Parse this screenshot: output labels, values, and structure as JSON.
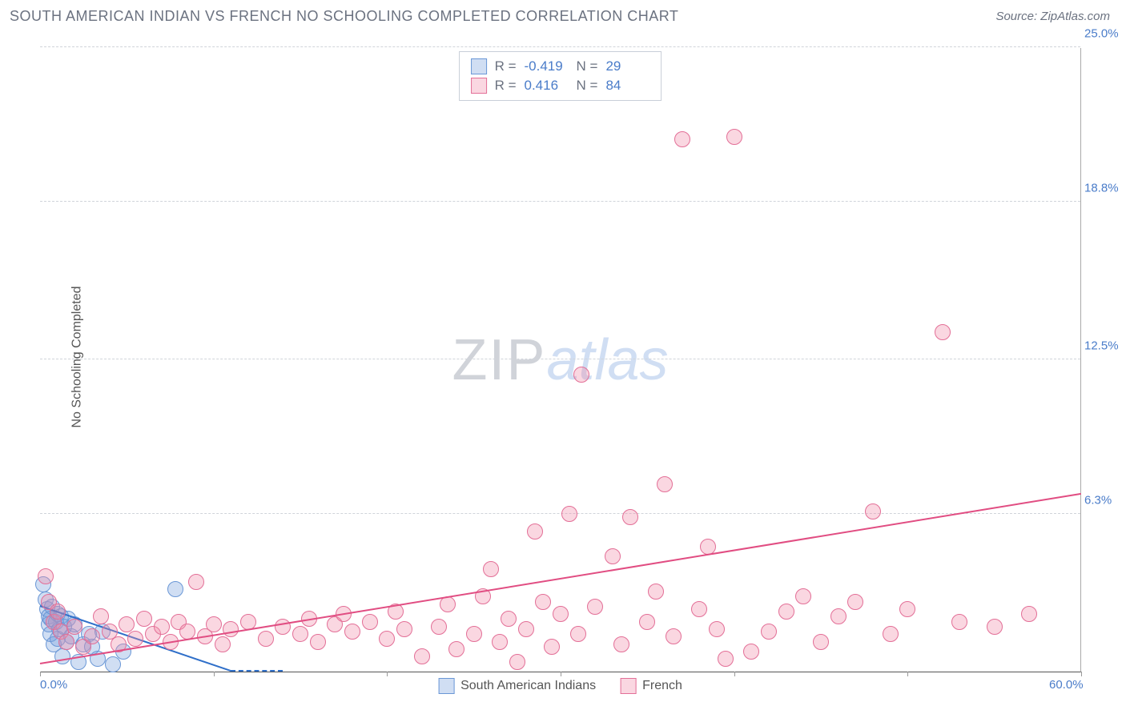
{
  "title": "SOUTH AMERICAN INDIAN VS FRENCH NO SCHOOLING COMPLETED CORRELATION CHART",
  "source": "Source: ZipAtlas.com",
  "y_axis_label": "No Schooling Completed",
  "watermark_zip": "ZIP",
  "watermark_atlas": "atlas",
  "chart": {
    "type": "scatter",
    "xlim": [
      0,
      60
    ],
    "ylim": [
      0,
      25
    ],
    "x_ticks": [
      0,
      10,
      20,
      30,
      40,
      50,
      60
    ],
    "x_tick_labels": {
      "0": "0.0%",
      "60": "60.0%"
    },
    "y_ticks": [
      6.3,
      12.5,
      18.8,
      25.0
    ],
    "y_tick_labels": [
      "6.3%",
      "12.5%",
      "18.8%",
      "25.0%"
    ],
    "background_color": "#ffffff",
    "grid_color": "#d0d4da",
    "axis_color": "#555555",
    "tick_label_color": "#4a7cc9",
    "marker_size": 20,
    "series": [
      {
        "name": "South American Indians",
        "fill": "rgba(120,160,220,0.35)",
        "stroke": "#6a97d6",
        "r_value": "-0.419",
        "n_value": "29",
        "trend": {
          "x1": 0,
          "y1": 2.6,
          "x2": 11,
          "y2": 0,
          "dash_extend_x": 14,
          "color": "#2f6fc9"
        },
        "points": [
          [
            0.2,
            3.5
          ],
          [
            0.3,
            2.9
          ],
          [
            0.4,
            2.5
          ],
          [
            0.5,
            2.2
          ],
          [
            0.5,
            1.9
          ],
          [
            0.6,
            1.5
          ],
          [
            0.6,
            2.1
          ],
          [
            0.7,
            2.6
          ],
          [
            0.8,
            1.1
          ],
          [
            0.9,
            2.0
          ],
          [
            1.0,
            1.3
          ],
          [
            1.0,
            2.3
          ],
          [
            1.1,
            1.7
          ],
          [
            1.2,
            2.2
          ],
          [
            1.3,
            0.6
          ],
          [
            1.4,
            1.8
          ],
          [
            1.5,
            1.2
          ],
          [
            1.6,
            2.1
          ],
          [
            1.8,
            1.4
          ],
          [
            2.0,
            1.9
          ],
          [
            2.2,
            0.4
          ],
          [
            2.5,
            1.1
          ],
          [
            2.8,
            1.5
          ],
          [
            3.0,
            1.0
          ],
          [
            3.3,
            0.5
          ],
          [
            3.6,
            1.6
          ],
          [
            4.2,
            0.3
          ],
          [
            4.8,
            0.8
          ],
          [
            7.8,
            3.3
          ]
        ]
      },
      {
        "name": "French",
        "fill": "rgba(240,140,170,0.35)",
        "stroke": "#e36f97",
        "r_value": "0.416",
        "n_value": "84",
        "trend": {
          "x1": 0,
          "y1": 0.3,
          "x2": 60,
          "y2": 7.1,
          "color": "#e14d82"
        },
        "points": [
          [
            0.3,
            3.8
          ],
          [
            0.5,
            2.8
          ],
          [
            0.8,
            2.0
          ],
          [
            1.0,
            2.4
          ],
          [
            1.2,
            1.6
          ],
          [
            1.5,
            1.2
          ],
          [
            2.0,
            1.8
          ],
          [
            2.5,
            1.0
          ],
          [
            3.0,
            1.4
          ],
          [
            3.5,
            2.2
          ],
          [
            4.0,
            1.6
          ],
          [
            4.5,
            1.1
          ],
          [
            5.0,
            1.9
          ],
          [
            5.5,
            1.3
          ],
          [
            6.0,
            2.1
          ],
          [
            6.5,
            1.5
          ],
          [
            7.0,
            1.8
          ],
          [
            7.5,
            1.2
          ],
          [
            8.0,
            2.0
          ],
          [
            8.5,
            1.6
          ],
          [
            9.0,
            3.6
          ],
          [
            9.5,
            1.4
          ],
          [
            10.0,
            1.9
          ],
          [
            10.5,
            1.1
          ],
          [
            11.0,
            1.7
          ],
          [
            12.0,
            2.0
          ],
          [
            13.0,
            1.3
          ],
          [
            14.0,
            1.8
          ],
          [
            15.0,
            1.5
          ],
          [
            15.5,
            2.1
          ],
          [
            16.0,
            1.2
          ],
          [
            17.0,
            1.9
          ],
          [
            17.5,
            2.3
          ],
          [
            18.0,
            1.6
          ],
          [
            19.0,
            2.0
          ],
          [
            20.0,
            1.3
          ],
          [
            20.5,
            2.4
          ],
          [
            21.0,
            1.7
          ],
          [
            22.0,
            0.6
          ],
          [
            23.0,
            1.8
          ],
          [
            23.5,
            2.7
          ],
          [
            24.0,
            0.9
          ],
          [
            25.0,
            1.5
          ],
          [
            25.5,
            3.0
          ],
          [
            26.0,
            4.1
          ],
          [
            26.5,
            1.2
          ],
          [
            27.0,
            2.1
          ],
          [
            27.5,
            0.4
          ],
          [
            28.0,
            1.7
          ],
          [
            28.5,
            5.6
          ],
          [
            29.0,
            2.8
          ],
          [
            29.5,
            1.0
          ],
          [
            30.0,
            2.3
          ],
          [
            30.5,
            6.3
          ],
          [
            31.0,
            1.5
          ],
          [
            31.2,
            11.9
          ],
          [
            32.0,
            2.6
          ],
          [
            33.0,
            4.6
          ],
          [
            33.5,
            1.1
          ],
          [
            34.0,
            6.2
          ],
          [
            35.0,
            2.0
          ],
          [
            35.5,
            3.2
          ],
          [
            36.0,
            7.5
          ],
          [
            36.5,
            1.4
          ],
          [
            37.0,
            21.3
          ],
          [
            38.0,
            2.5
          ],
          [
            38.5,
            5.0
          ],
          [
            39.0,
            1.7
          ],
          [
            39.5,
            0.5
          ],
          [
            40.0,
            21.4
          ],
          [
            41.0,
            0.8
          ],
          [
            42.0,
            1.6
          ],
          [
            43.0,
            2.4
          ],
          [
            44.0,
            3.0
          ],
          [
            45.0,
            1.2
          ],
          [
            46.0,
            2.2
          ],
          [
            47.0,
            2.8
          ],
          [
            48.0,
            6.4
          ],
          [
            49.0,
            1.5
          ],
          [
            50.0,
            2.5
          ],
          [
            52.0,
            13.6
          ],
          [
            53.0,
            2.0
          ],
          [
            55.0,
            1.8
          ],
          [
            57.0,
            2.3
          ]
        ]
      }
    ]
  },
  "stats_box": {
    "r_label": "R =",
    "n_label": "N ="
  },
  "legend": {
    "items": [
      "South American Indians",
      "French"
    ]
  }
}
